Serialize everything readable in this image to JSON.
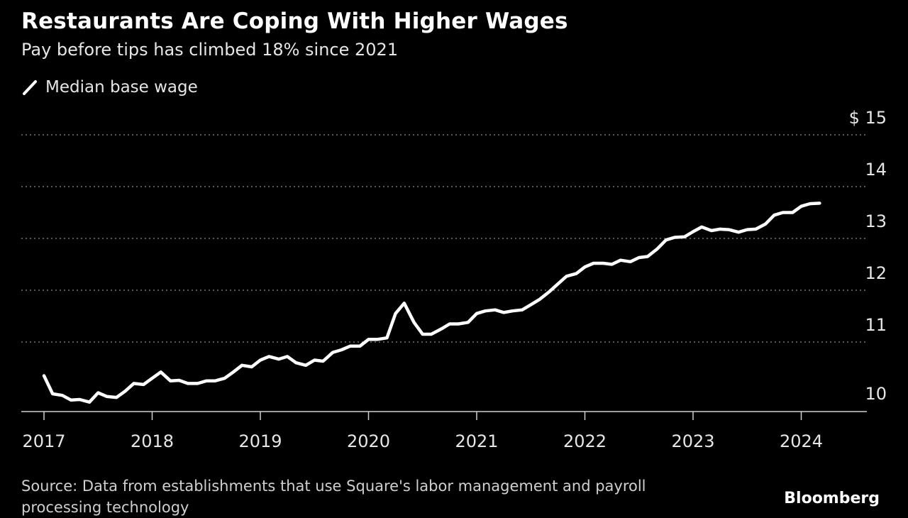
{
  "title": "Restaurants Are Coping With Higher Wages",
  "subtitle": "Pay before tips has climbed 18% since 2021",
  "source": "Source: Data from establishments that use Square's labor management and payroll processing technology",
  "brand": "Bloomberg",
  "chart_data": {
    "type": "line",
    "legend_position": "top-left",
    "grid": true,
    "line_color": "#ffffff",
    "ylim": [
      9.7,
      15
    ],
    "xlim": [
      2016.75,
      2024.9
    ],
    "y_ticks": [
      {
        "value": 15,
        "label": "$ 15"
      },
      {
        "value": 14,
        "label": "14"
      },
      {
        "value": 13,
        "label": "13"
      },
      {
        "value": 12,
        "label": "12"
      },
      {
        "value": 11,
        "label": "11"
      },
      {
        "value": 10,
        "label": "10"
      }
    ],
    "x_ticks": [
      {
        "value": 2017,
        "label": "2017"
      },
      {
        "value": 2018,
        "label": "2018"
      },
      {
        "value": 2019,
        "label": "2019"
      },
      {
        "value": 2020,
        "label": "2020"
      },
      {
        "value": 2021,
        "label": "2021"
      },
      {
        "value": 2022,
        "label": "2022"
      },
      {
        "value": 2023,
        "label": "2023"
      },
      {
        "value": 2024,
        "label": "2024"
      }
    ],
    "series": [
      {
        "name": "Median base wage",
        "points": [
          [
            2017.0,
            10.35
          ],
          [
            2017.08,
            10.0
          ],
          [
            2017.17,
            9.97
          ],
          [
            2017.25,
            9.88
          ],
          [
            2017.33,
            9.89
          ],
          [
            2017.42,
            9.84
          ],
          [
            2017.5,
            10.02
          ],
          [
            2017.58,
            9.95
          ],
          [
            2017.67,
            9.93
          ],
          [
            2017.75,
            10.05
          ],
          [
            2017.83,
            10.2
          ],
          [
            2017.92,
            10.18
          ],
          [
            2018.0,
            10.3
          ],
          [
            2018.08,
            10.42
          ],
          [
            2018.17,
            10.25
          ],
          [
            2018.25,
            10.26
          ],
          [
            2018.33,
            10.2
          ],
          [
            2018.42,
            10.2
          ],
          [
            2018.5,
            10.25
          ],
          [
            2018.58,
            10.25
          ],
          [
            2018.67,
            10.3
          ],
          [
            2018.75,
            10.42
          ],
          [
            2018.83,
            10.55
          ],
          [
            2018.92,
            10.52
          ],
          [
            2019.0,
            10.65
          ],
          [
            2019.08,
            10.72
          ],
          [
            2019.17,
            10.67
          ],
          [
            2019.25,
            10.72
          ],
          [
            2019.33,
            10.6
          ],
          [
            2019.42,
            10.55
          ],
          [
            2019.5,
            10.65
          ],
          [
            2019.58,
            10.63
          ],
          [
            2019.67,
            10.8
          ],
          [
            2019.75,
            10.85
          ],
          [
            2019.83,
            10.92
          ],
          [
            2019.92,
            10.92
          ],
          [
            2020.0,
            11.05
          ],
          [
            2020.08,
            11.05
          ],
          [
            2020.17,
            11.08
          ],
          [
            2020.25,
            11.55
          ],
          [
            2020.33,
            11.75
          ],
          [
            2020.42,
            11.38
          ],
          [
            2020.5,
            11.15
          ],
          [
            2020.58,
            11.15
          ],
          [
            2020.67,
            11.25
          ],
          [
            2020.75,
            11.35
          ],
          [
            2020.83,
            11.35
          ],
          [
            2020.92,
            11.38
          ],
          [
            2021.0,
            11.55
          ],
          [
            2021.08,
            11.6
          ],
          [
            2021.17,
            11.62
          ],
          [
            2021.25,
            11.57
          ],
          [
            2021.33,
            11.6
          ],
          [
            2021.42,
            11.62
          ],
          [
            2021.5,
            11.72
          ],
          [
            2021.58,
            11.82
          ],
          [
            2021.67,
            11.97
          ],
          [
            2021.75,
            12.12
          ],
          [
            2021.83,
            12.27
          ],
          [
            2021.92,
            12.32
          ],
          [
            2022.0,
            12.45
          ],
          [
            2022.08,
            12.52
          ],
          [
            2022.17,
            12.52
          ],
          [
            2022.25,
            12.5
          ],
          [
            2022.33,
            12.58
          ],
          [
            2022.42,
            12.55
          ],
          [
            2022.5,
            12.63
          ],
          [
            2022.58,
            12.65
          ],
          [
            2022.67,
            12.8
          ],
          [
            2022.75,
            12.97
          ],
          [
            2022.83,
            13.02
          ],
          [
            2022.92,
            13.03
          ],
          [
            2023.0,
            13.13
          ],
          [
            2023.08,
            13.22
          ],
          [
            2023.17,
            13.15
          ],
          [
            2023.25,
            13.18
          ],
          [
            2023.33,
            13.17
          ],
          [
            2023.42,
            13.12
          ],
          [
            2023.5,
            13.17
          ],
          [
            2023.58,
            13.18
          ],
          [
            2023.67,
            13.28
          ],
          [
            2023.75,
            13.45
          ],
          [
            2023.83,
            13.5
          ],
          [
            2023.92,
            13.5
          ],
          [
            2024.0,
            13.62
          ],
          [
            2024.08,
            13.67
          ],
          [
            2024.17,
            13.68
          ]
        ]
      }
    ]
  }
}
